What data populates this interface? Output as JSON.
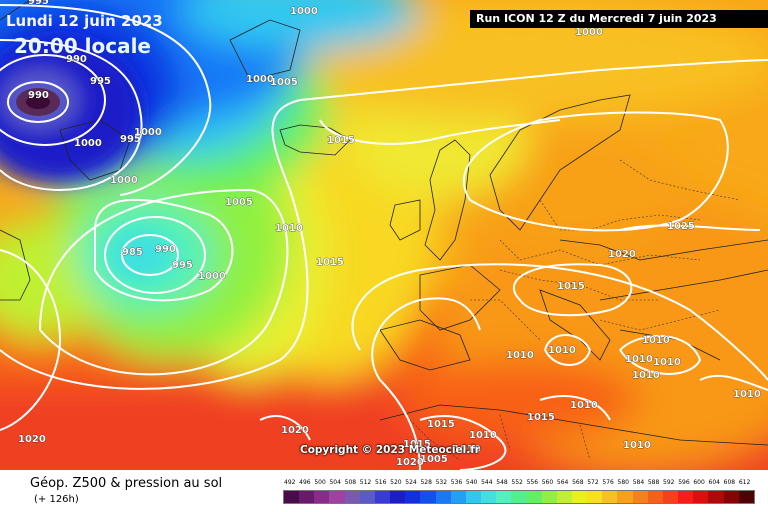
{
  "header": {
    "date": "Lundi 12 juin 2023",
    "time": "20:00 locale",
    "run": "Run ICON 12 Z du Mercredi 7 juin 2023"
  },
  "copyright": "Copyright © 2023 Meteociel.fr",
  "footer": {
    "title": "Géop. Z500 & pression au sol",
    "subtitle": "(+ 126h)"
  },
  "pressure_labels": [
    {
      "text": "995"
    },
    {
      "text": "1000"
    },
    {
      "text": "990"
    },
    {
      "text": "995"
    },
    {
      "text": "990"
    },
    {
      "text": "1000"
    },
    {
      "text": "995"
    },
    {
      "text": "1000"
    },
    {
      "text": "1000"
    },
    {
      "text": "1005"
    },
    {
      "text": "1000"
    },
    {
      "text": "1015"
    },
    {
      "text": "1005"
    },
    {
      "text": "1010"
    },
    {
      "text": "985"
    },
    {
      "text": "990"
    },
    {
      "text": "995"
    },
    {
      "text": "1000"
    },
    {
      "text": "1015"
    },
    {
      "text": "1025"
    },
    {
      "text": "1020"
    },
    {
      "text": "1015"
    },
    {
      "text": "1010"
    },
    {
      "text": "1010"
    },
    {
      "text": "1010"
    },
    {
      "text": "1010"
    },
    {
      "text": "1010"
    },
    {
      "text": "1010"
    },
    {
      "text": "1010"
    },
    {
      "text": "1010"
    },
    {
      "text": "1015"
    },
    {
      "text": "1015"
    },
    {
      "text": "1010"
    },
    {
      "text": "1010"
    },
    {
      "text": "1005"
    },
    {
      "text": "1015"
    },
    {
      "text": "1020"
    },
    {
      "text": "1020"
    },
    {
      "text": "1020"
    },
    {
      "text": "1010"
    },
    {
      "text": "1000"
    }
  ],
  "scale": {
    "labels": [
      "492",
      "496",
      "500",
      "504",
      "508",
      "512",
      "516",
      "520",
      "524",
      "528",
      "532",
      "536",
      "540",
      "544",
      "548",
      "552",
      "556",
      "560",
      "564",
      "568",
      "572",
      "576",
      "580",
      "584",
      "588",
      "592",
      "596",
      "600",
      "604",
      "608",
      "612"
    ],
    "colors": [
      "#4b0a4b",
      "#6a1a6a",
      "#8a2a8a",
      "#a040a0",
      "#7a5ab0",
      "#5a5ac8",
      "#3a3ad8",
      "#1c1cc8",
      "#1030e0",
      "#1050f0",
      "#1878f8",
      "#20a0f8",
      "#30c8f0",
      "#40e0e0",
      "#50f0c0",
      "#50f090",
      "#60f060",
      "#90f040",
      "#c0f030",
      "#e8f020",
      "#f8e020",
      "#f8c020",
      "#f8a018",
      "#f88018",
      "#f86018",
      "#f84018",
      "#f02018",
      "#d81010",
      "#b00808",
      "#880404",
      "#500202"
    ]
  },
  "colors": {
    "low_center": "#5a2a56",
    "deep_blue": "#1a2cc0",
    "ocean_yellow": "#e8f040",
    "europe_orange": "#f8a818",
    "south_red": "#f04020"
  }
}
